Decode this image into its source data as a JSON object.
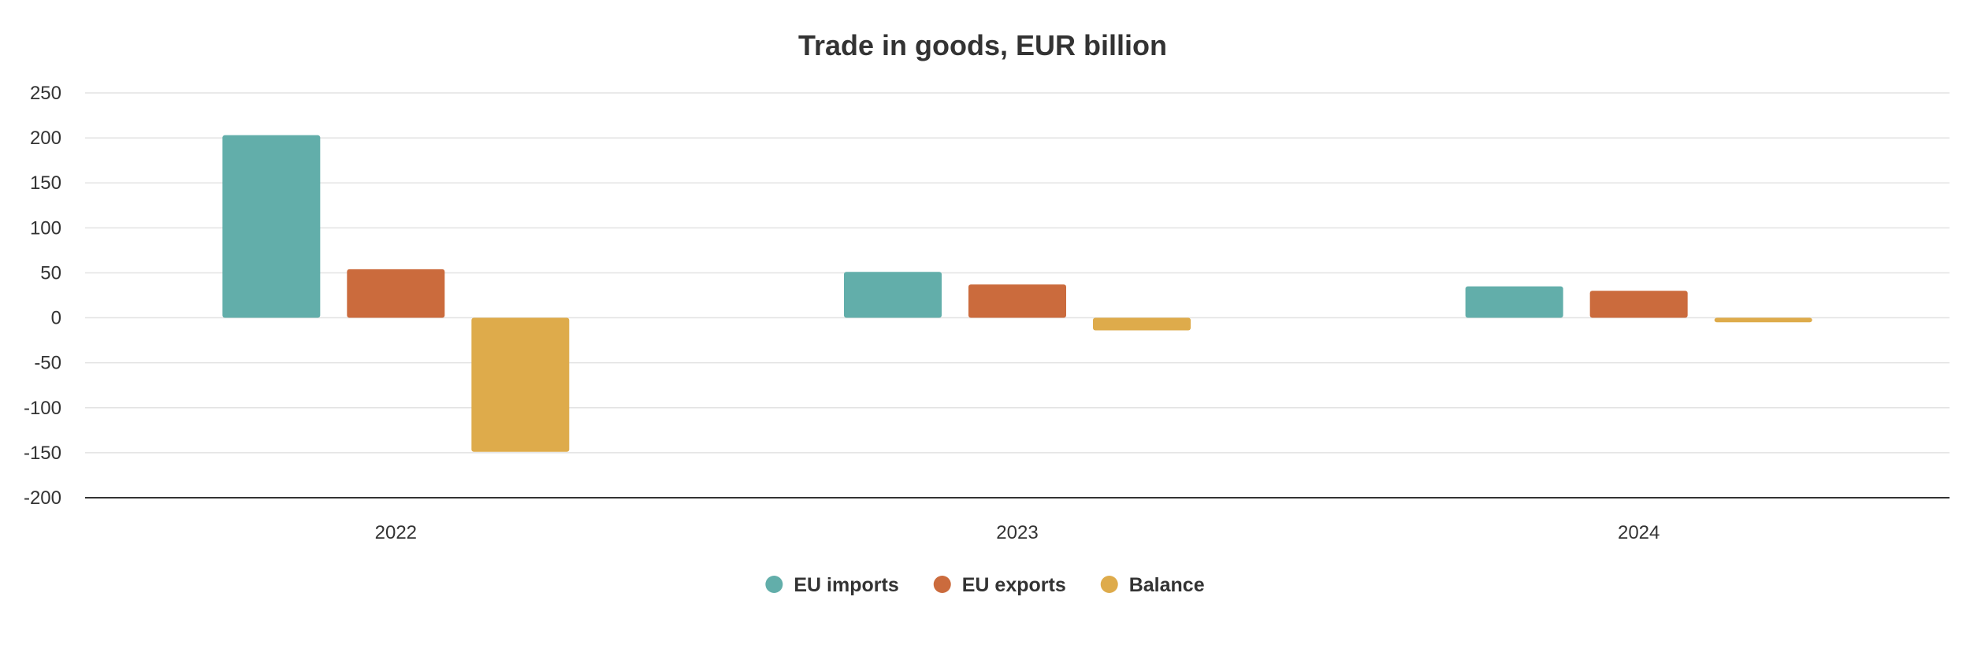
{
  "chart_data": {
    "type": "bar",
    "title": "Trade in goods, EUR billion",
    "xlabel": "",
    "ylabel": "",
    "categories": [
      "2022",
      "2023",
      "2024"
    ],
    "series": [
      {
        "name": "EU imports",
        "color": "#62aeaa",
        "values": [
          203,
          51,
          35
        ]
      },
      {
        "name": "EU exports",
        "color": "#cb6b3d",
        "values": [
          54,
          37,
          30
        ]
      },
      {
        "name": "Balance",
        "color": "#deab4b",
        "values": [
          -149,
          -14,
          -5
        ]
      }
    ],
    "ylim": [
      -200,
      250
    ],
    "yticks": [
      250,
      200,
      150,
      100,
      50,
      0,
      -50,
      -100,
      -150,
      -200
    ],
    "grid": true,
    "legend_position": "bottom-center"
  }
}
